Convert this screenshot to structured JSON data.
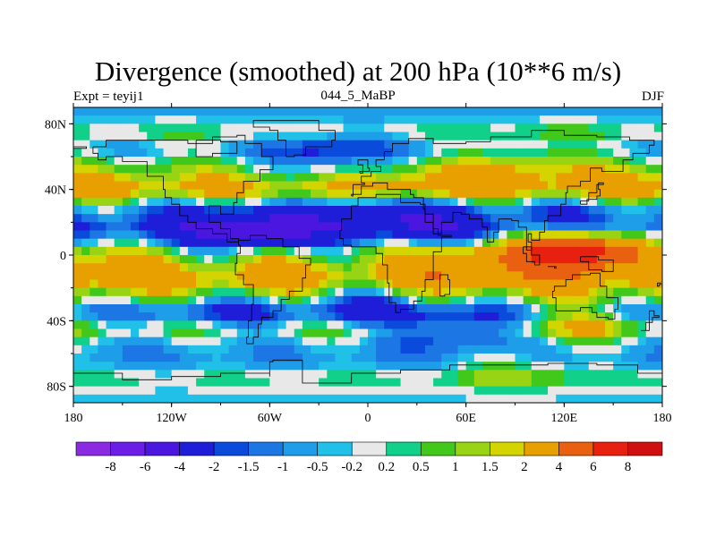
{
  "chart_data": {
    "type": "heatmap",
    "title": "Divergence (smoothed) at 200 hPa (10**6 m/s)",
    "subtitle_left": "Expt = teyij1",
    "subtitle_center": "044_5_MaBP",
    "subtitle_right": "DJF",
    "x_ticks": [
      "180",
      "120W",
      "60W",
      "0",
      "60E",
      "120E",
      "180"
    ],
    "y_ticks": [
      "80N",
      "40N",
      "0",
      "40S",
      "80S"
    ],
    "xlim": [
      -180,
      180
    ],
    "ylim": [
      -90,
      90
    ],
    "colorbar": {
      "levels": [
        "-8",
        "-6",
        "-4",
        "-2",
        "-1.5",
        "-1",
        "-0.5",
        "-0.2",
        "0.2",
        "0.5",
        "1",
        "1.5",
        "2",
        "4",
        "6",
        "8"
      ],
      "colors": [
        "#8a2be2",
        "#6a1ee6",
        "#4b17e0",
        "#1e1ed8",
        "#0a4bdc",
        "#1c76e3",
        "#1e9ee8",
        "#20c0e8",
        "#e8e8e8",
        "#10d08a",
        "#42c81a",
        "#98d414",
        "#d4d400",
        "#e8a000",
        "#e86010",
        "#e82010",
        "#d01010"
      ]
    },
    "bands": [
      {
        "lat": 86,
        "value": -0.7
      },
      {
        "lat": 75,
        "value": 0.5
      },
      {
        "lat": 65,
        "value": -0.5
      },
      {
        "lat": 52,
        "value": 1.2
      },
      {
        "lat": 40,
        "value": 2.5
      },
      {
        "lat": 28,
        "value": -1.2
      },
      {
        "lat": 18,
        "value": -2.5
      },
      {
        "lat": 10,
        "value": -1.5
      },
      {
        "lat": 3,
        "value": 0.6
      },
      {
        "lat": -5,
        "value": 1.5
      },
      {
        "lat": -15,
        "value": 2.5
      },
      {
        "lat": -25,
        "value": 1.0
      },
      {
        "lat": -35,
        "value": -1.2
      },
      {
        "lat": -45,
        "value": 0.8
      },
      {
        "lat": -55,
        "value": -0.6
      },
      {
        "lat": -65,
        "value": -1.0
      },
      {
        "lat": -75,
        "value": 0.4
      },
      {
        "lat": -85,
        "value": -0.3
      }
    ],
    "features": [
      {
        "lon": -70,
        "lat": 15,
        "value": -5.5
      },
      {
        "lon": 10,
        "lat": 25,
        "value": -3.5
      },
      {
        "lon": 40,
        "lat": 20,
        "value": -3.0
      },
      {
        "lon": 120,
        "lat": 25,
        "value": -2.0
      },
      {
        "lon": -165,
        "lat": 20,
        "value": -2.0
      },
      {
        "lon": 45,
        "lat": 45,
        "value": 3.0
      },
      {
        "lon": -170,
        "lat": 40,
        "value": 3.0
      },
      {
        "lon": -120,
        "lat": 48,
        "value": 1.5
      },
      {
        "lon": 100,
        "lat": 55,
        "value": 2.0
      },
      {
        "lon": 60,
        "lat": -5,
        "value": 4.0
      },
      {
        "lon": -55,
        "lat": -12,
        "value": 3.0
      },
      {
        "lon": 25,
        "lat": -15,
        "value": 2.5
      },
      {
        "lon": 135,
        "lat": 0,
        "value": 3.5
      },
      {
        "lon": 125,
        "lat": 5,
        "value": 5.0
      },
      {
        "lon": -160,
        "lat": -10,
        "value": 3.0
      },
      {
        "lon": -90,
        "lat": -35,
        "value": -2.5
      },
      {
        "lon": -5,
        "lat": -30,
        "value": -2.2
      },
      {
        "lon": 55,
        "lat": -45,
        "value": -1.5
      },
      {
        "lon": 130,
        "lat": -40,
        "value": 1.5
      },
      {
        "lon": -30,
        "lat": 60,
        "value": -2.0
      },
      {
        "lon": 10,
        "lat": 65,
        "value": -1.0
      },
      {
        "lon": -100,
        "lat": 75,
        "value": 0.6
      },
      {
        "lon": 90,
        "lat": 75,
        "value": 0.6
      },
      {
        "lon": -30,
        "lat": -75,
        "value": 0.5
      },
      {
        "lon": 90,
        "lat": -70,
        "value": 1.0
      },
      {
        "lon": 150,
        "lat": 78,
        "value": 0.3
      }
    ]
  }
}
